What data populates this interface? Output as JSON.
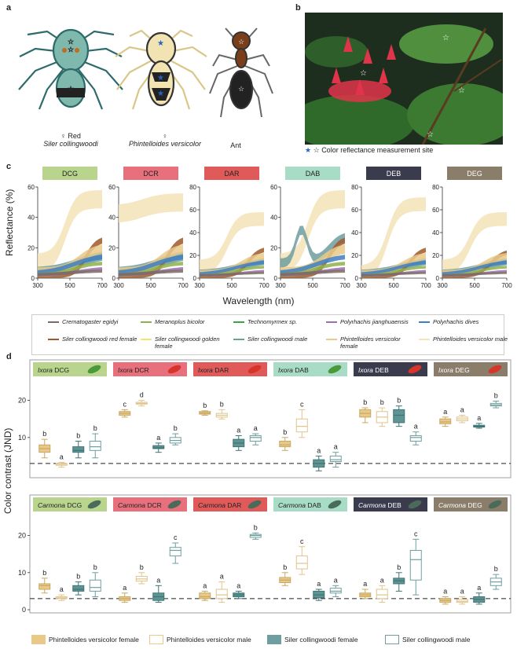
{
  "panel_a": {
    "letter": "a",
    "spider1_caption_line1": "♀ Red",
    "spider1_caption_line2": "Siler collingwoodi",
    "spider2_caption_line1": "♀",
    "spider2_caption_line2": "Phintelloides versicolor",
    "ant_caption": "Ant"
  },
  "panel_b": {
    "letter": "b",
    "legend_text": "Color reflectance measurement site"
  },
  "panel_c": {
    "letter": "c",
    "ylabel": "Reflectance (%)",
    "xlabel": "Wavelength (nm)",
    "subplots": [
      {
        "label": "DCG",
        "color": "#b9d48c",
        "ymax": 60,
        "yticks": [
          "0",
          "20",
          "40",
          "60"
        ]
      },
      {
        "label": "DCR",
        "color": "#e8707c",
        "ymax": 60,
        "yticks": [
          "0",
          "20",
          "40",
          "60"
        ]
      },
      {
        "label": "DAR",
        "color": "#e05a5a",
        "ymax": 80,
        "yticks": [
          "0",
          "20",
          "40",
          "60",
          "80"
        ]
      },
      {
        "label": "DAB",
        "color": "#a8dcc6",
        "ymax": 60,
        "yticks": [
          "0",
          "20",
          "40",
          "60"
        ]
      },
      {
        "label": "DEB",
        "color": "#3a3c4e",
        "ymax": 80,
        "yticks": [
          "0",
          "20",
          "40",
          "60",
          "80"
        ]
      },
      {
        "label": "DEG",
        "color": "#8a7d6a",
        "ymax": 80,
        "yticks": [
          "0",
          "20",
          "40",
          "60",
          "80"
        ]
      }
    ],
    "xticks": [
      "300",
      "500",
      "700"
    ],
    "legend": [
      {
        "name": "Crematogaster egidyi",
        "color": "#7a6a62"
      },
      {
        "name": "Meranoplus bicolor",
        "color": "#8db24a"
      },
      {
        "name": "Technomyrmex sp.",
        "color": "#3da24a"
      },
      {
        "name": "Polyrhachis jianghuaensis",
        "color": "#9c6fb4"
      },
      {
        "name": "Polyrhachis dives",
        "color": "#3d7fc0"
      },
      {
        "name": "Siler collingwoodi red female",
        "color": "#9e5a2c"
      },
      {
        "name": "Siler collingwoodi golden female",
        "color": "#f3e56a"
      },
      {
        "name": "Siler collingwoodi male",
        "color": "#6e9ea0"
      },
      {
        "name": "Phintelloides versicolor female",
        "color": "#e9c98a"
      },
      {
        "name": "Phintelloides versicolor male",
        "color": "#f3e3b6"
      }
    ]
  },
  "panel_d": {
    "letter": "d",
    "ylabel": "Color contrast (JND)",
    "threshold": 3,
    "rows": [
      {
        "plant": "Ixora",
        "ymax": 25,
        "yticks": [
          "10",
          "20"
        ],
        "groups": [
          {
            "label": "DCG",
            "color": "#b9d48c",
            "boxes": [
              [
                4.5,
                6,
                7,
                8,
                9.5
              ],
              [
                2,
                2.5,
                2.8,
                3,
                3.3
              ],
              [
                4.5,
                6,
                6.5,
                7.5,
                9
              ],
              [
                4.5,
                6.5,
                7.5,
                9,
                11
              ]
            ],
            "letters": [
              "b",
              "a",
              "b",
              "b"
            ]
          },
          {
            "label": "DCR",
            "color": "#e8707c",
            "boxes": [
              [
                15.5,
                16,
                16.5,
                17,
                17.5
              ],
              [
                18.5,
                19,
                19.2,
                19.5,
                20
              ],
              [
                6,
                7,
                7.2,
                7.8,
                8.5
              ],
              [
                8,
                8.5,
                9.2,
                10,
                11
              ]
            ],
            "letters": [
              "c",
              "d",
              "a",
              "b"
            ]
          },
          {
            "label": "DAR",
            "color": "#e05a5a",
            "boxes": [
              [
                16,
                16.3,
                16.6,
                17,
                17.2
              ],
              [
                15,
                15.5,
                16,
                16.5,
                17.5
              ],
              [
                6.5,
                7.5,
                8.5,
                9.5,
                10.5
              ],
              [
                8,
                9,
                10,
                10.5,
                11
              ]
            ],
            "letters": [
              "b",
              "b",
              "a",
              "a"
            ]
          },
          {
            "label": "DAB",
            "color": "#a8dcc6",
            "boxes": [
              [
                6.5,
                7.5,
                8,
                9,
                10
              ],
              [
                10,
                11.5,
                13,
                15,
                17.5
              ],
              [
                1,
                2,
                3,
                4,
                5
              ],
              [
                2,
                3.5,
                4,
                5,
                6
              ]
            ],
            "letters": [
              "b",
              "c",
              "a",
              "a"
            ]
          },
          {
            "label": "DEB",
            "color": "#3a3c4e",
            "boxes": [
              [
                14,
                15.5,
                16.5,
                17.5,
                18
              ],
              [
                13,
                14,
                15.5,
                17,
                18
              ],
              [
                13,
                14,
                16,
                17.5,
                18.5
              ],
              [
                8,
                9,
                10,
                10.5,
                11.5
              ]
            ],
            "letters": [
              "b",
              "b",
              "b",
              "a"
            ]
          },
          {
            "label": "DEG",
            "color": "#8a7d6a",
            "boxes": [
              [
                13,
                13.7,
                14.2,
                15,
                15.5
              ],
              [
                14,
                14.5,
                15,
                15.5,
                16
              ],
              [
                12.5,
                12.8,
                13,
                13.3,
                13.8
              ],
              [
                18,
                18.5,
                18.8,
                19.2,
                19.8
              ]
            ],
            "letters": [
              "a",
              "a",
              "a",
              "b"
            ]
          }
        ]
      },
      {
        "plant": "Carmona",
        "ymax": 25,
        "yticks": [
          "0",
          "10",
          "20"
        ],
        "groups": [
          {
            "label": "DCG",
            "color": "#b9d48c",
            "boxes": [
              [
                4.5,
                5.5,
                6.5,
                7,
                8.5
              ],
              [
                2.5,
                3,
                3.2,
                3.5,
                4
              ],
              [
                4,
                5,
                5.5,
                6.5,
                7.5
              ],
              [
                3.5,
                5,
                6,
                8,
                10
              ]
            ],
            "letters": [
              "b",
              "a",
              "b",
              "b"
            ]
          },
          {
            "label": "DCR",
            "color": "#e8707c",
            "boxes": [
              [
                2,
                2.5,
                3,
                3.5,
                4.5
              ],
              [
                7,
                7.7,
                8.3,
                9,
                10
              ],
              [
                2,
                2.5,
                3.5,
                4.5,
                6.5
              ],
              [
                12.5,
                14.5,
                16,
                16.8,
                18
              ]
            ],
            "letters": [
              "a",
              "b",
              "a",
              "c"
            ]
          },
          {
            "label": "DAR",
            "color": "#e05a5a",
            "boxes": [
              [
                2.5,
                3,
                3.5,
                4.5,
                5
              ],
              [
                2,
                3,
                4,
                5.5,
                7.5
              ],
              [
                3,
                3.5,
                4,
                4.5,
                5
              ],
              [
                19,
                19.5,
                20,
                20.3,
                20.7
              ]
            ],
            "letters": [
              "a",
              "a",
              "a",
              "b"
            ]
          },
          {
            "label": "DAB",
            "color": "#a8dcc6",
            "boxes": [
              [
                6.5,
                7.3,
                8,
                8.7,
                10
              ],
              [
                9.5,
                11,
                12.5,
                14.5,
                17
              ],
              [
                2.5,
                3.2,
                4,
                5,
                5.5
              ],
              [
                3.5,
                4.5,
                5,
                5.8,
                6.5
              ]
            ],
            "letters": [
              "b",
              "c",
              "a",
              "a"
            ]
          },
          {
            "label": "DEB",
            "color": "#3a3c4e",
            "boxes": [
              [
                3,
                3.5,
                4,
                4.5,
                5.5
              ],
              [
                2,
                3,
                4,
                5.5,
                6.5
              ],
              [
                5,
                7,
                7.8,
                8.5,
                10
              ],
              [
                4,
                8,
                13.5,
                16,
                19
              ]
            ],
            "letters": [
              "a",
              "a",
              "b",
              "c"
            ]
          },
          {
            "label": "DEG",
            "color": "#8a7d6a",
            "boxes": [
              [
                1.5,
                2,
                2.5,
                3,
                3.5
              ],
              [
                1.5,
                2,
                2.3,
                2.8,
                3.5
              ],
              [
                1.5,
                2,
                2.8,
                3.5,
                4.5
              ],
              [
                5.5,
                6.5,
                7.5,
                8.5,
                9.5
              ]
            ],
            "letters": [
              "a",
              "a",
              "a",
              "b"
            ]
          }
        ]
      }
    ],
    "legend": [
      {
        "name": "Phintelloides versicolor female",
        "style": "fill",
        "color": "#e9c98a"
      },
      {
        "name": "Phintelloides versicolor male",
        "style": "outline",
        "color": "#e9c98a"
      },
      {
        "name": "Siler collingwoodi female",
        "style": "fill",
        "color": "#6e9ea0"
      },
      {
        "name": "Siler collingwoodi male",
        "style": "outline",
        "color": "#6e9ea0"
      }
    ]
  }
}
